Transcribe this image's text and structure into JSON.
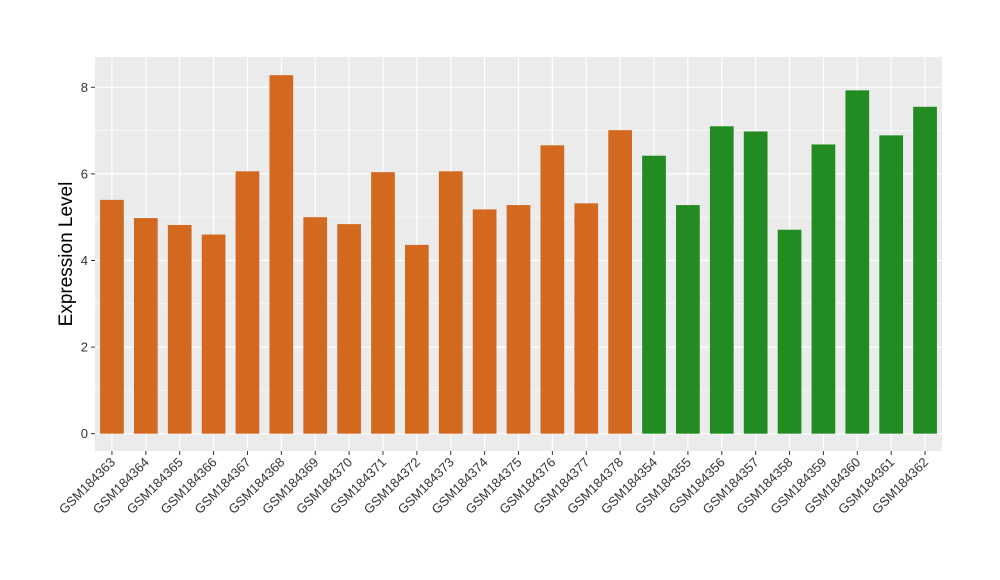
{
  "chart_data": {
    "type": "bar",
    "title": "",
    "xlabel": "",
    "ylabel": "Expression Level",
    "ylim": [
      -0.4,
      8.7
    ],
    "yticks": [
      0,
      2,
      4,
      6,
      8
    ],
    "grid": true,
    "legend": "none",
    "colors": {
      "group_a": "#D2691E",
      "group_b": "#228B22",
      "panel": "#EBEBEB",
      "gridline": "#FFFFFF"
    },
    "categories": [
      "GSM184363",
      "GSM184364",
      "GSM184365",
      "GSM184366",
      "GSM184367",
      "GSM184368",
      "GSM184369",
      "GSM184370",
      "GSM184371",
      "GSM184372",
      "GSM184373",
      "GSM184374",
      "GSM184375",
      "GSM184376",
      "GSM184377",
      "GSM184378",
      "GSM184354",
      "GSM184355",
      "GSM184356",
      "GSM184357",
      "GSM184358",
      "GSM184359",
      "GSM184360",
      "GSM184361",
      "GSM184362"
    ],
    "values": [
      5.4,
      4.98,
      4.82,
      4.6,
      6.06,
      8.28,
      5.0,
      4.84,
      6.04,
      4.36,
      6.06,
      5.18,
      5.28,
      6.66,
      5.32,
      7.01,
      6.42,
      5.28,
      7.1,
      6.98,
      4.71,
      6.68,
      7.93,
      6.89,
      7.55
    ],
    "groups": [
      "a",
      "a",
      "a",
      "a",
      "a",
      "a",
      "a",
      "a",
      "a",
      "a",
      "a",
      "a",
      "a",
      "a",
      "a",
      "a",
      "b",
      "b",
      "b",
      "b",
      "b",
      "b",
      "b",
      "b",
      "b"
    ]
  }
}
